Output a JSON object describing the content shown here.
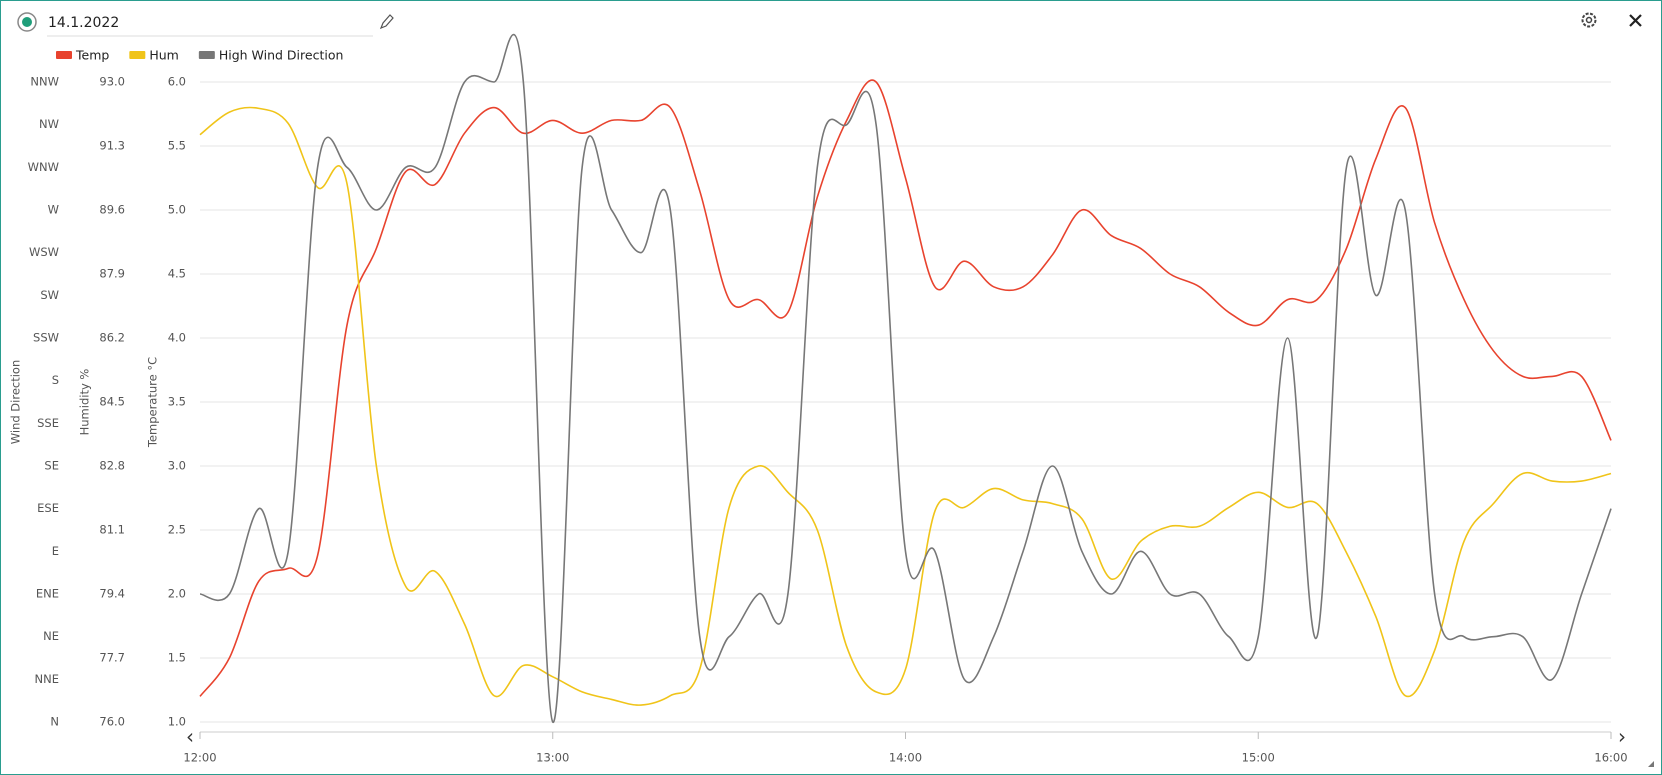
{
  "chart_data": {
    "type": "line",
    "title": "14.1.2022",
    "x": [
      "12:00",
      "12:05",
      "12:10",
      "12:15",
      "12:20",
      "12:25",
      "12:30",
      "12:35",
      "12:40",
      "12:45",
      "12:50",
      "12:55",
      "13:00",
      "13:05",
      "13:10",
      "13:15",
      "13:20",
      "13:25",
      "13:30",
      "13:35",
      "13:40",
      "13:45",
      "13:50",
      "13:55",
      "14:00",
      "14:05",
      "14:10",
      "14:15",
      "14:20",
      "14:25",
      "14:30",
      "14:35",
      "14:40",
      "14:45",
      "14:50",
      "14:55",
      "15:00",
      "15:05",
      "15:10",
      "15:15",
      "15:20",
      "15:25",
      "15:30",
      "15:35",
      "15:40",
      "15:45",
      "15:50",
      "15:55",
      "16:00"
    ],
    "xlim": [
      "12:00",
      "16:00"
    ],
    "xticks": [
      "12:00",
      "13:00",
      "14:00",
      "15:00",
      "16:00"
    ],
    "ylabel": "Temperature °C",
    "ylim": [
      1,
      6
    ],
    "yticks": [
      {
        "value": 1,
        "label": "1.0"
      },
      1.5,
      {
        "value": 2,
        "label": "2.0"
      },
      2.5,
      {
        "value": 3,
        "label": "3.0"
      },
      3.5,
      {
        "value": 4,
        "label": "4.0"
      },
      4.5,
      {
        "value": 5,
        "label": "5.0"
      },
      5.5,
      {
        "value": 6,
        "label": "6.0"
      }
    ],
    "y2label": "Humidity %",
    "y2lim": [
      76,
      93
    ],
    "y2ticks": [
      {
        "value": 76,
        "label": "76.0"
      },
      77.7,
      79.4,
      81.1,
      82.8,
      84.5,
      86.2,
      87.9,
      89.6,
      91.3,
      {
        "value": 93,
        "label": "93.0"
      }
    ],
    "y3label": "Wind Direction",
    "y3categories": [
      "N",
      "NNE",
      "NE",
      "ENE",
      "E",
      "ESE",
      "SE",
      "SSE",
      "S",
      "SSW",
      "SW",
      "WSW",
      "W",
      "WNW",
      "NW",
      "NNW"
    ],
    "grid": true,
    "series": [
      {
        "name": "Temp",
        "color": "#e8432e",
        "axis": "y",
        "values": [
          1.2,
          1.5,
          2.1,
          2.2,
          2.3,
          4.1,
          4.7,
          5.3,
          5.2,
          5.6,
          5.8,
          5.6,
          5.7,
          5.6,
          5.7,
          5.7,
          5.8,
          5.15,
          4.3,
          4.3,
          4.2,
          5.1,
          5.7,
          6.0,
          5.25,
          4.4,
          4.6,
          4.4,
          4.4,
          4.65,
          5.0,
          4.8,
          4.7,
          4.5,
          4.4,
          4.2,
          4.1,
          4.3,
          4.3,
          4.7,
          5.4,
          5.8,
          4.9,
          4.3,
          3.9,
          3.7,
          3.7,
          3.7,
          3.2
        ]
      },
      {
        "name": "Hum",
        "color": "#f0c419",
        "axis": "y2",
        "values": [
          91.6,
          92.2,
          92.3,
          91.9,
          90.2,
          90.3,
          82.8,
          79.6,
          80.0,
          78.6,
          76.7,
          77.5,
          77.2,
          76.8,
          76.6,
          76.45,
          76.7,
          77.4,
          81.7,
          82.8,
          82.1,
          81.1,
          78.0,
          76.8,
          77.4,
          81.6,
          81.7,
          82.2,
          81.9,
          81.8,
          81.4,
          79.8,
          80.8,
          81.2,
          81.2,
          81.7,
          82.1,
          81.7,
          81.8,
          80.5,
          78.8,
          76.7,
          77.9,
          80.8,
          81.8,
          82.6,
          82.4,
          82.4,
          82.6
        ]
      },
      {
        "name": "High Wind Direction",
        "color": "#777777",
        "axis": "y3",
        "values": [
          "ENE",
          "ENE",
          "ESE",
          "E",
          "WNW",
          "WNW",
          "W",
          "WNW",
          "WNW",
          "NNW",
          "NNW",
          "NNW",
          "N",
          "WNW",
          "W",
          "WSW",
          "W",
          "NE",
          "NE",
          "ENE",
          "ENE",
          "WNW",
          "NW",
          "NW",
          "E",
          "E",
          "NNE",
          "NE",
          "E",
          "SE",
          "E",
          "ENE",
          "E",
          "ENE",
          "ENE",
          "NE",
          "NE",
          "SSW",
          "NE",
          "WNW",
          "SW",
          "W",
          "ENE",
          "NE",
          "NE",
          "NE",
          "NNE",
          "ENE",
          "ESE"
        ]
      }
    ]
  }
}
